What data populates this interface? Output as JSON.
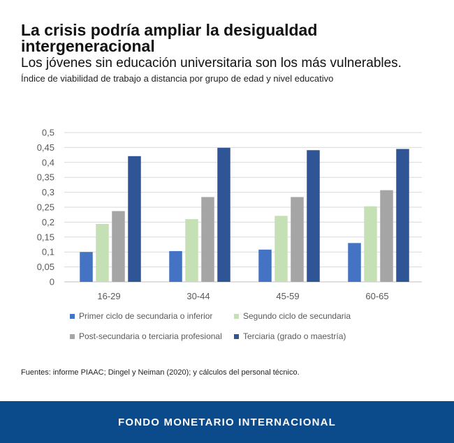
{
  "header": {
    "title": "La crisis podría ampliar la desigualdad intergeneracional",
    "subtitle": "Los jóvenes sin educación universitaria son los más vulnerables.",
    "description": "Índice de viabilidad de trabajo a distancia por grupo de edad y nivel educativo"
  },
  "source": "Fuentes: informe PIAAC; Dingel y Neiman (2020); y cálculos del personal técnico.",
  "footer": {
    "label": "FONDO MONETARIO INTERNACIONAL"
  },
  "chart_data": {
    "type": "bar",
    "categories": [
      "16-29",
      "30-44",
      "45-59",
      "60-65"
    ],
    "ylim": [
      0,
      0.5
    ],
    "yticks": [
      "0",
      "0,05",
      "0,1",
      "0,15",
      "0,2",
      "0,25",
      "0,3",
      "0,35",
      "0,4",
      "0,45",
      "0,5"
    ],
    "grid": true,
    "legend_position": "bottom",
    "series": [
      {
        "name": "Primer ciclo de secundaria o inferior",
        "color": "#4472c4",
        "values": [
          0.1,
          0.103,
          0.108,
          0.13
        ]
      },
      {
        "name": "Segundo ciclo de secundaria",
        "color": "#c5e0b4",
        "values": [
          0.194,
          0.21,
          0.221,
          0.253
        ]
      },
      {
        "name": "Post-secundaria o terciaria profesional",
        "color": "#a5a5a5",
        "values": [
          0.237,
          0.284,
          0.284,
          0.307
        ]
      },
      {
        "name": "Terciaria (grado o maestría)",
        "color": "#2f5597",
        "values": [
          0.421,
          0.449,
          0.441,
          0.445
        ]
      }
    ]
  }
}
